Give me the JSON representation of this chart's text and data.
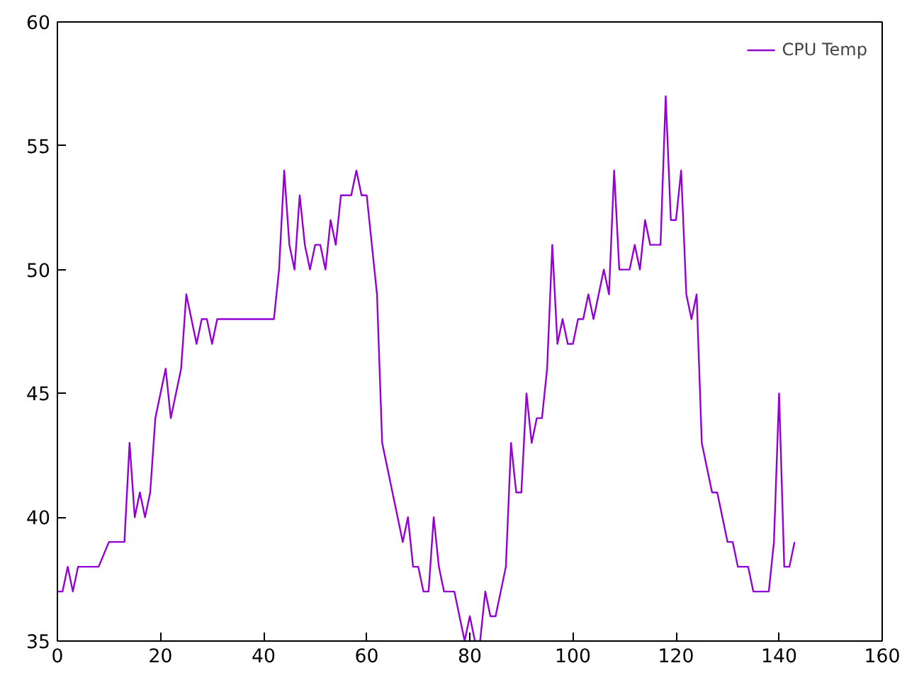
{
  "chart_data": {
    "type": "line",
    "xlim": [
      0,
      160
    ],
    "ylim": [
      35,
      60
    ],
    "xticks": [
      0,
      20,
      40,
      60,
      80,
      100,
      120,
      140,
      160
    ],
    "yticks": [
      35,
      40,
      45,
      50,
      55,
      60
    ],
    "grid": false,
    "legend": "top right",
    "marker": "none",
    "line_style": "solid",
    "series": [
      {
        "name": "CPU Temp",
        "color": "#9400d3",
        "x": [
          0,
          1,
          2,
          3,
          4,
          8,
          10,
          13,
          14,
          15,
          16,
          17,
          18,
          19,
          21,
          22,
          24,
          25,
          27,
          28,
          29,
          30,
          31,
          42,
          43,
          44,
          45,
          46,
          47,
          48,
          49,
          50,
          51,
          52,
          53,
          54,
          55,
          57,
          58,
          59,
          60,
          62,
          63,
          67,
          68,
          69,
          70,
          71,
          72,
          73,
          74,
          75,
          77,
          79,
          80,
          81,
          82,
          83,
          84,
          85,
          87,
          88,
          89,
          90,
          91,
          92,
          93,
          94,
          95,
          96,
          97,
          98,
          99,
          100,
          101,
          102,
          103,
          104,
          106,
          107,
          108,
          109,
          111,
          112,
          113,
          114,
          115,
          117,
          118,
          119,
          120,
          121,
          122,
          123,
          124,
          125,
          127,
          128,
          130,
          131,
          132,
          134,
          135,
          138,
          139,
          140,
          141,
          142,
          143
        ],
        "values": [
          37,
          37,
          38,
          37,
          38,
          38,
          39,
          39,
          43,
          40,
          41,
          40,
          41,
          44,
          46,
          44,
          46,
          49,
          47,
          48,
          48,
          47,
          48,
          48,
          50,
          54,
          51,
          50,
          53,
          51,
          50,
          51,
          51,
          50,
          52,
          51,
          53,
          53,
          54,
          53,
          53,
          49,
          43,
          39,
          40,
          38,
          38,
          37,
          37,
          40,
          38,
          37,
          37,
          35,
          36,
          35,
          35,
          37,
          36,
          36,
          38,
          43,
          41,
          41,
          45,
          43,
          44,
          44,
          46,
          51,
          47,
          48,
          47,
          47,
          48,
          48,
          49,
          48,
          50,
          49,
          54,
          50,
          50,
          51,
          50,
          52,
          51,
          51,
          57,
          52,
          52,
          54,
          49,
          48,
          49,
          43,
          41,
          41,
          39,
          39,
          38,
          38,
          37,
          37,
          39,
          45,
          38,
          38,
          39
        ]
      }
    ]
  }
}
